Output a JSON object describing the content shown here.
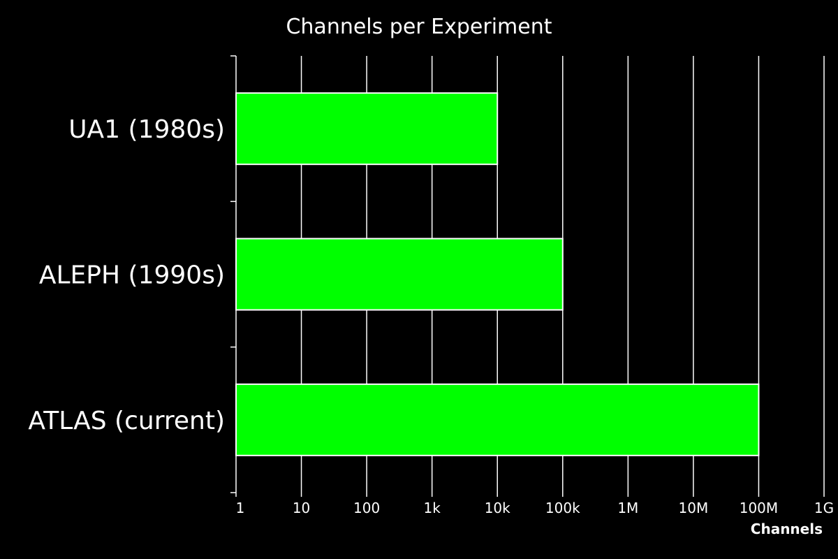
{
  "chart_data": {
    "type": "bar",
    "orientation": "horizontal",
    "title": "Channels per Experiment",
    "xlabel": "Channels",
    "ylabel": "",
    "x_scale": "log10",
    "xlim": [
      1,
      1000000000
    ],
    "x_ticks": [
      1,
      10,
      100,
      1000,
      10000,
      100000,
      1000000,
      10000000,
      100000000,
      1000000000
    ],
    "x_tick_labels": [
      "1",
      "10",
      "100",
      "1k",
      "10k",
      "100k",
      "1M",
      "10M",
      "100M",
      "1G"
    ],
    "categories": [
      "UA1 (1980s)",
      "ALEPH (1990s)",
      "ATLAS (current)"
    ],
    "values": [
      10000,
      100000,
      100000000
    ],
    "grid": "vertical",
    "legend": "none",
    "colors": {
      "background": "#000000",
      "bar_fill": "#00ff00",
      "bar_stroke": "#ffffff",
      "grid": "#ffffff",
      "text": "#ffffff"
    }
  }
}
